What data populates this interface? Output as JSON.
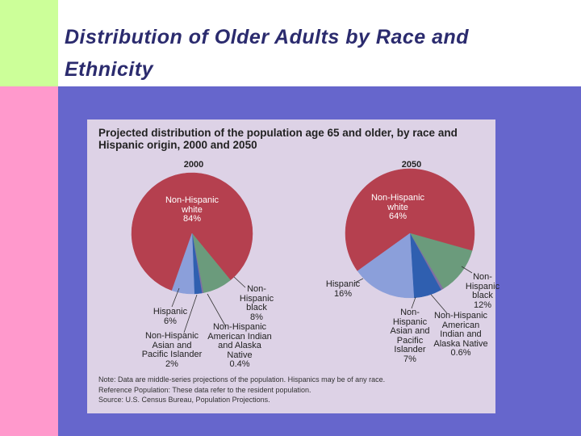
{
  "slide_title": "Distribution of Older Adults by Race and Ethnicity",
  "figure": {
    "title": "Projected distribution of the population age 65 and older, by race and Hispanic origin, 2000 and 2050",
    "notes": [
      "Note: Data are middle-series projections of the population. Hispanics may be of any race.",
      "Reference Population: These data refer to the resident population.",
      "Source: U.S. Census Bureau, Population Projections."
    ]
  },
  "chart_data": [
    {
      "type": "pie",
      "title": "2000",
      "categories": [
        "Non-Hispanic white",
        "Non-Hispanic black",
        "Non-Hispanic American Indian and Alaska Native",
        "Non-Hispanic Asian and Pacific Islander",
        "Hispanic"
      ],
      "values": [
        84,
        8,
        0.4,
        2,
        6
      ],
      "value_labels": [
        "84%",
        "8%",
        "0.4%",
        "2%",
        "6%"
      ],
      "colors": [
        "#b5404f",
        "#6b9b7c",
        "#7f6fa3",
        "#2f5fb0",
        "#8b9fda"
      ]
    },
    {
      "type": "pie",
      "title": "2050",
      "categories": [
        "Non-Hispanic white",
        "Non-Hispanic black",
        "Non-Hispanic American Indian and Alaska Native",
        "Non-Hispanic Asian and Pacific Islander",
        "Hispanic"
      ],
      "values": [
        64,
        12,
        0.6,
        7,
        16
      ],
      "value_labels": [
        "64%",
        "12%",
        "0.6%",
        "7%",
        "16%"
      ],
      "colors": [
        "#b5404f",
        "#6b9b7c",
        "#7f6fa3",
        "#2f5fb0",
        "#8b9fda"
      ]
    }
  ]
}
